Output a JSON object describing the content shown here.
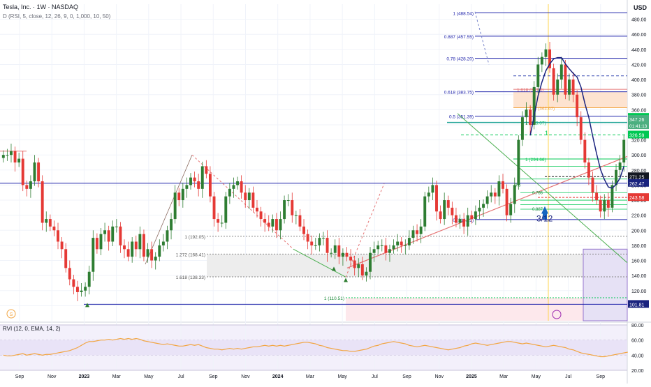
{
  "header": {
    "title": "Tesla, Inc. · 1W · NASDAQ",
    "indicator": "D (RSI, 5, close, 12, 26, 9, 0, 1,000, 10, 50)",
    "currency": "USD"
  },
  "rvi": {
    "label": "RVI (12, 0, EMA, 14, 2)"
  },
  "colors": {
    "up": "#2e7d32",
    "down": "#e53935",
    "fib_blue": "#1e22aa",
    "fib_green": "#00c853",
    "trend_red": "#e57373",
    "trend_green": "#4caf50",
    "ma": "#1a237e",
    "rvi_line": "#f2a541"
  },
  "chart_data": {
    "type": "candlestick",
    "title": "Tesla, Inc. · 1W · NASDAQ",
    "y_range": [
      80,
      500
    ],
    "y_ticks": [
      100,
      120,
      140,
      160,
      180,
      200,
      220,
      240,
      260,
      280,
      300,
      320,
      340,
      360,
      380,
      400,
      420,
      440,
      460,
      480
    ],
    "x_ticks": [
      "Sep",
      "Nov",
      "2023",
      "Mar",
      "May",
      "Jul",
      "Sep",
      "Nov",
      "2024",
      "Mar",
      "May",
      "Jul",
      "Sep",
      "Nov",
      "2025",
      "Mar",
      "May",
      "Jul",
      "Sep"
    ],
    "closes": [
      300,
      300,
      305,
      290,
      295,
      260,
      255,
      265,
      290,
      265,
      210,
      215,
      205,
      200,
      185,
      175,
      150,
      135,
      125,
      118,
      120,
      125,
      145,
      190,
      175,
      195,
      200,
      185,
      205,
      205,
      180,
      175,
      165,
      185,
      175,
      195,
      165,
      175,
      160,
      165,
      180,
      185,
      200,
      215,
      250,
      240,
      255,
      260,
      270,
      265,
      255,
      285,
      275,
      245,
      215,
      210,
      210,
      245,
      255,
      260,
      265,
      250,
      240,
      250,
      230,
      225,
      215,
      210,
      205,
      215,
      200,
      215,
      240,
      240,
      220,
      220,
      205,
      195,
      185,
      180,
      180,
      190,
      190,
      170,
      170,
      180,
      165,
      170,
      165,
      160,
      150,
      155,
      140,
      145,
      170,
      175,
      180,
      180,
      170,
      175,
      180,
      185,
      180,
      180,
      190,
      200,
      195,
      205,
      245,
      250,
      260,
      225,
      215,
      240,
      230,
      220,
      210,
      215,
      205,
      220,
      215,
      225,
      230,
      235,
      245,
      250,
      245,
      265,
      255,
      220,
      235,
      260,
      320,
      350,
      360,
      340,
      390,
      420,
      430,
      440,
      415,
      380,
      400,
      420,
      380,
      400,
      380,
      350,
      320,
      290,
      270,
      250,
      240,
      225,
      240,
      230,
      260,
      280,
      290,
      320
    ],
    "current_price": 347.26,
    "countdown": "01:41:13",
    "price_labels": [
      350.0,
      326.59,
      271.25,
      262.47,
      243.58,
      101.81
    ],
    "fib_upper": [
      {
        "level": "1",
        "price": 488.54,
        "text": "1 (488.54)"
      },
      {
        "level": "0.887",
        "price": 457.55,
        "text": "0.887 (457.55)"
      },
      {
        "level": "0.78",
        "price": 428.2,
        "text": "0.78 (428.20)"
      },
      {
        "level": "0.618",
        "price": 383.75,
        "text": "0.618 (383.75)"
      },
      {
        "level": "0.5",
        "price": 351.39,
        "text": "0.5 (351.39)"
      },
      {
        "level": "0",
        "price": 214.25,
        "text": "0 (214.25)"
      }
    ],
    "fib_ext_lower": [
      {
        "level": "1",
        "price": 192.05,
        "text": "1 (192.05)"
      },
      {
        "level": "1.272",
        "price": 168.41,
        "text": "1.272 (168.41)"
      },
      {
        "level": "1.618",
        "price": 138.33,
        "text": "1.618 (138.33)"
      },
      {
        "level": "1",
        "price": 110.51,
        "text": "1 (110.51)"
      }
    ],
    "fib_ext_right": [
      {
        "level": "1.618",
        "price": 387.0,
        "text": "1.618 (387.0)"
      },
      {
        "level": "1.272",
        "price": 362.67,
        "text": "1.272 (362.67)"
      },
      {
        "level": "1",
        "price": 343.07,
        "text": "1 (343.07)"
      },
      {
        "level": "1",
        "price": 294.66,
        "text": "1 (294.66)"
      }
    ],
    "annotations": [
      "3/12",
      "1",
      "S",
      "0.6",
      "0.786",
      "0.887"
    ],
    "rvi": {
      "y_range": [
        20,
        80
      ],
      "y_ticks": [
        20.0,
        40.0,
        60.0,
        80.0
      ],
      "values": [
        40,
        39,
        39,
        40,
        41,
        42,
        40,
        41,
        42,
        41,
        40,
        41,
        41,
        42,
        43,
        44,
        45,
        46,
        48,
        50,
        53,
        56,
        58,
        58,
        59,
        60,
        60,
        61,
        60,
        61,
        62,
        61,
        62,
        61,
        62,
        61,
        59,
        58,
        57,
        56,
        55,
        54,
        55,
        54,
        53,
        52,
        52,
        53,
        54,
        53,
        54,
        52,
        50,
        49,
        48,
        48,
        47,
        48,
        49,
        48,
        49,
        48,
        49,
        50,
        51,
        51,
        52,
        53,
        52,
        53,
        52,
        53,
        52,
        53,
        54,
        55,
        56,
        57,
        57,
        56,
        55,
        53,
        52,
        50,
        49,
        48,
        47,
        46,
        46,
        45,
        45,
        46,
        47,
        48,
        50,
        52,
        53,
        55,
        56,
        57,
        58,
        57,
        56,
        55,
        53,
        52,
        51,
        52,
        53,
        52,
        51,
        50,
        49,
        48,
        47,
        48,
        49,
        50,
        52,
        53,
        55,
        56,
        55,
        54,
        53,
        54,
        55,
        56,
        57,
        58,
        58,
        57,
        56,
        55,
        56,
        55,
        54,
        53,
        52,
        51,
        52,
        53,
        52,
        51,
        50,
        48,
        47,
        45,
        43,
        42,
        41,
        40,
        39,
        38,
        38,
        39,
        40,
        41,
        42,
        43,
        44
      ]
    }
  }
}
